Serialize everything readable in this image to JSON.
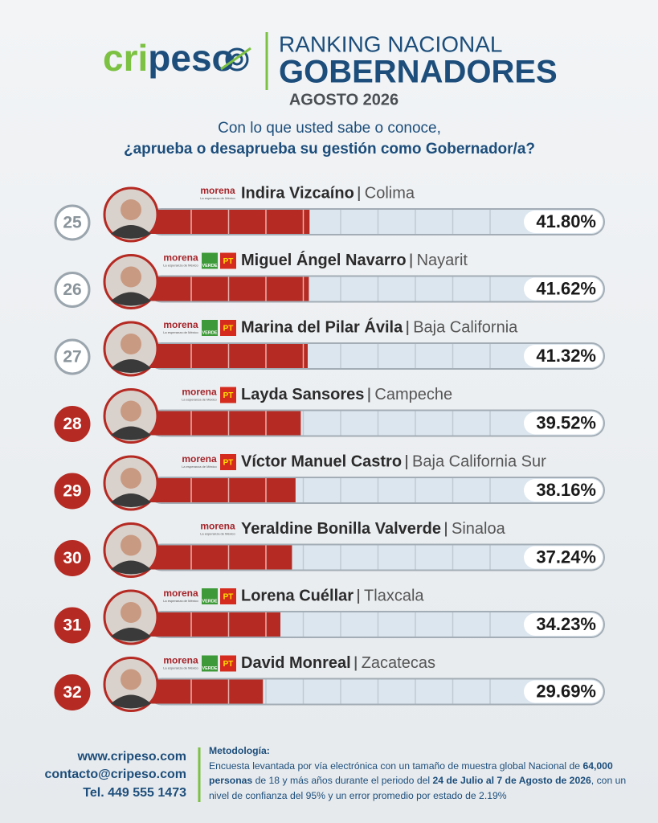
{
  "header": {
    "logo": {
      "green": "cri",
      "blue": "peso"
    },
    "title_line1": "RANKING NACIONAL",
    "title_line2": "GOBERNADORES",
    "date": "AGOSTO 2026",
    "question_line1": "Con lo que usted sabe o conoce,",
    "question_line2": "¿aprueba o desaprueba su gestión como Gobernador/a?"
  },
  "chart_data": {
    "type": "bar",
    "orientation": "horizontal",
    "ranks": [
      25,
      26,
      27,
      28,
      29,
      30,
      31,
      32
    ],
    "rank_styles": [
      "outline",
      "outline",
      "outline",
      "filled",
      "filled",
      "filled",
      "filled",
      "filled"
    ],
    "categories": [
      "Indira Vizcaíno",
      "Miguel Ángel Navarro",
      "Marina del Pilar Ávila",
      "Layda Sansores",
      "Víctor Manuel Castro",
      "Yeraldine Bonilla Valverde",
      "Lorena Cuéllar",
      "David Monreal"
    ],
    "states": [
      "Colima",
      "Nayarit",
      "Baja California",
      "Campeche",
      "Baja California Sur",
      "Sinaloa",
      "Tlaxcala",
      "Zacatecas"
    ],
    "parties": [
      [
        "morena"
      ],
      [
        "morena",
        "VERDE",
        "PT"
      ],
      [
        "morena",
        "VERDE",
        "PT"
      ],
      [
        "morena",
        "PT"
      ],
      [
        "morena",
        "PT"
      ],
      [
        "morena"
      ],
      [
        "morena",
        "VERDE",
        "PT"
      ],
      [
        "morena",
        "VERDE",
        "PT"
      ]
    ],
    "party_tagline": "La esperanza de México",
    "values": [
      41.8,
      41.62,
      41.32,
      39.52,
      38.16,
      37.24,
      34.23,
      29.69
    ],
    "value_labels": [
      "41.80%",
      "41.62%",
      "41.32%",
      "39.52%",
      "38.16%",
      "37.24%",
      "34.23%",
      "29.69%"
    ],
    "color": "#b52a23",
    "xlim": [
      0,
      120
    ]
  },
  "footer": {
    "website": "www.cripeso.com",
    "email": "contacto@cripeso.com",
    "phone": "Tel. 449 555 1473",
    "methodology_title": "Metodología:",
    "methodology": [
      {
        "text": "Encuesta levantada por vía electrónica con un tamaño de muestra global Nacional de ",
        "bold": false
      },
      {
        "text": "64,000 personas",
        "bold": true
      },
      {
        "text": " de 18 y más años durante el periodo del ",
        "bold": false
      },
      {
        "text": "24 de Julio al 7 de Agosto de 2026",
        "bold": true
      },
      {
        "text": ", con un nivel de confianza del 95% y un error promedio por estado de 2.19%",
        "bold": false
      }
    ]
  }
}
